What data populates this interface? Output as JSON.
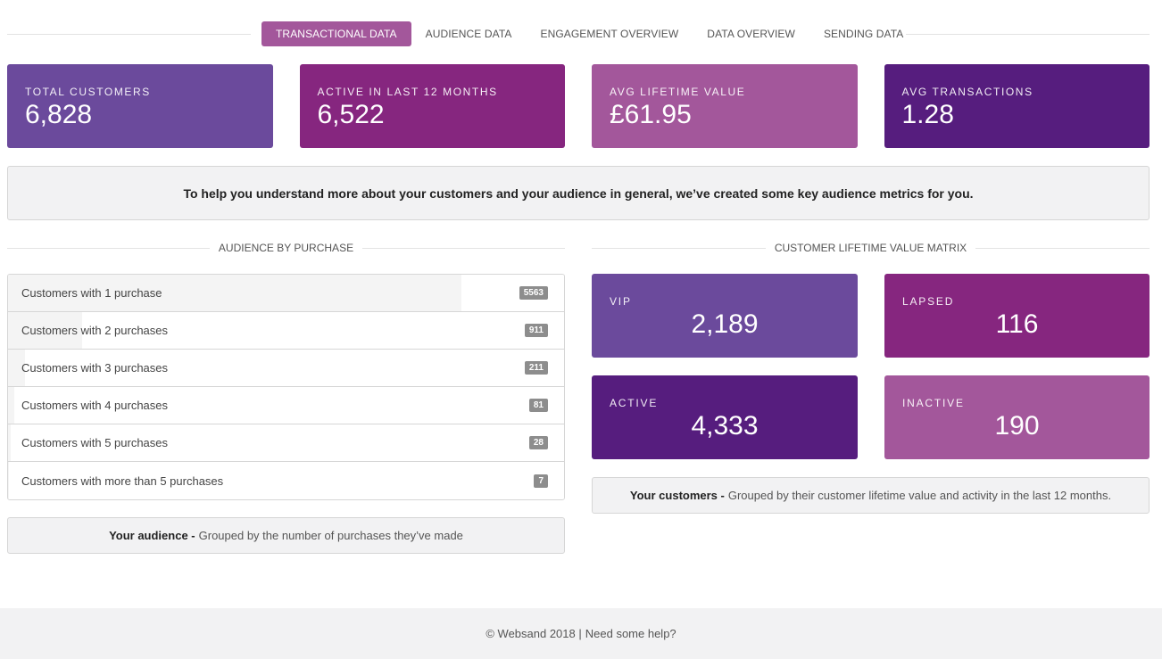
{
  "tabs": [
    {
      "label": "TRANSACTIONAL DATA",
      "active": true
    },
    {
      "label": "AUDIENCE DATA",
      "active": false
    },
    {
      "label": "ENGAGEMENT OVERVIEW",
      "active": false
    },
    {
      "label": "DATA OVERVIEW",
      "active": false
    },
    {
      "label": "SENDING DATA",
      "active": false
    }
  ],
  "kpis": [
    {
      "label": "TOTAL CUSTOMERS",
      "value": "6,828",
      "color": "#6b4a9c"
    },
    {
      "label": "ACTIVE IN LAST 12 MONTHS",
      "value": "6,522",
      "color": "#86267f"
    },
    {
      "label": "AVG LIFETIME VALUE",
      "value": "£61.95",
      "color": "#a3579b"
    },
    {
      "label": "AVG TRANSACTIONS",
      "value": "1.28",
      "color": "#561d7e"
    }
  ],
  "banner": "To help you understand more about your customers and your audience in general, we’ve created some key audience metrics for you.",
  "audience": {
    "title": "AUDIENCE BY PURCHASE",
    "rows": [
      {
        "label": "Customers with 1 purchase",
        "count": "5563",
        "share": 0.8147
      },
      {
        "label": "Customers with 2 purchases",
        "count": "911",
        "share": 0.1334
      },
      {
        "label": "Customers with 3 purchases",
        "count": "211",
        "share": 0.0309
      },
      {
        "label": "Customers with 4 purchases",
        "count": "81",
        "share": 0.0119
      },
      {
        "label": "Customers with 5 purchases",
        "count": "28",
        "share": 0.0041
      },
      {
        "label": "Customers with more than 5 purchases",
        "count": "7",
        "share": 0.001
      }
    ],
    "note_bold": "Your audience -",
    "note_text": "Grouped by the number of purchases they’ve made"
  },
  "clv": {
    "title": "CUSTOMER LIFETIME VALUE MATRIX",
    "cards": [
      {
        "label": "VIP",
        "value": "2,189",
        "color": "#6b4a9c"
      },
      {
        "label": "LAPSED",
        "value": "116",
        "color": "#86267f"
      },
      {
        "label": "ACTIVE",
        "value": "4,333",
        "color": "#561d7e"
      },
      {
        "label": "INACTIVE",
        "value": "190",
        "color": "#a3579b"
      }
    ],
    "note_bold": "Your customers -",
    "note_text": "Grouped by their customer lifetime value and activity in the last 12 months."
  },
  "footer": {
    "copyright": "© Websand 2018 |",
    "help_link": "Need some help?"
  },
  "colors": {
    "tab_active": "#a3579b"
  }
}
